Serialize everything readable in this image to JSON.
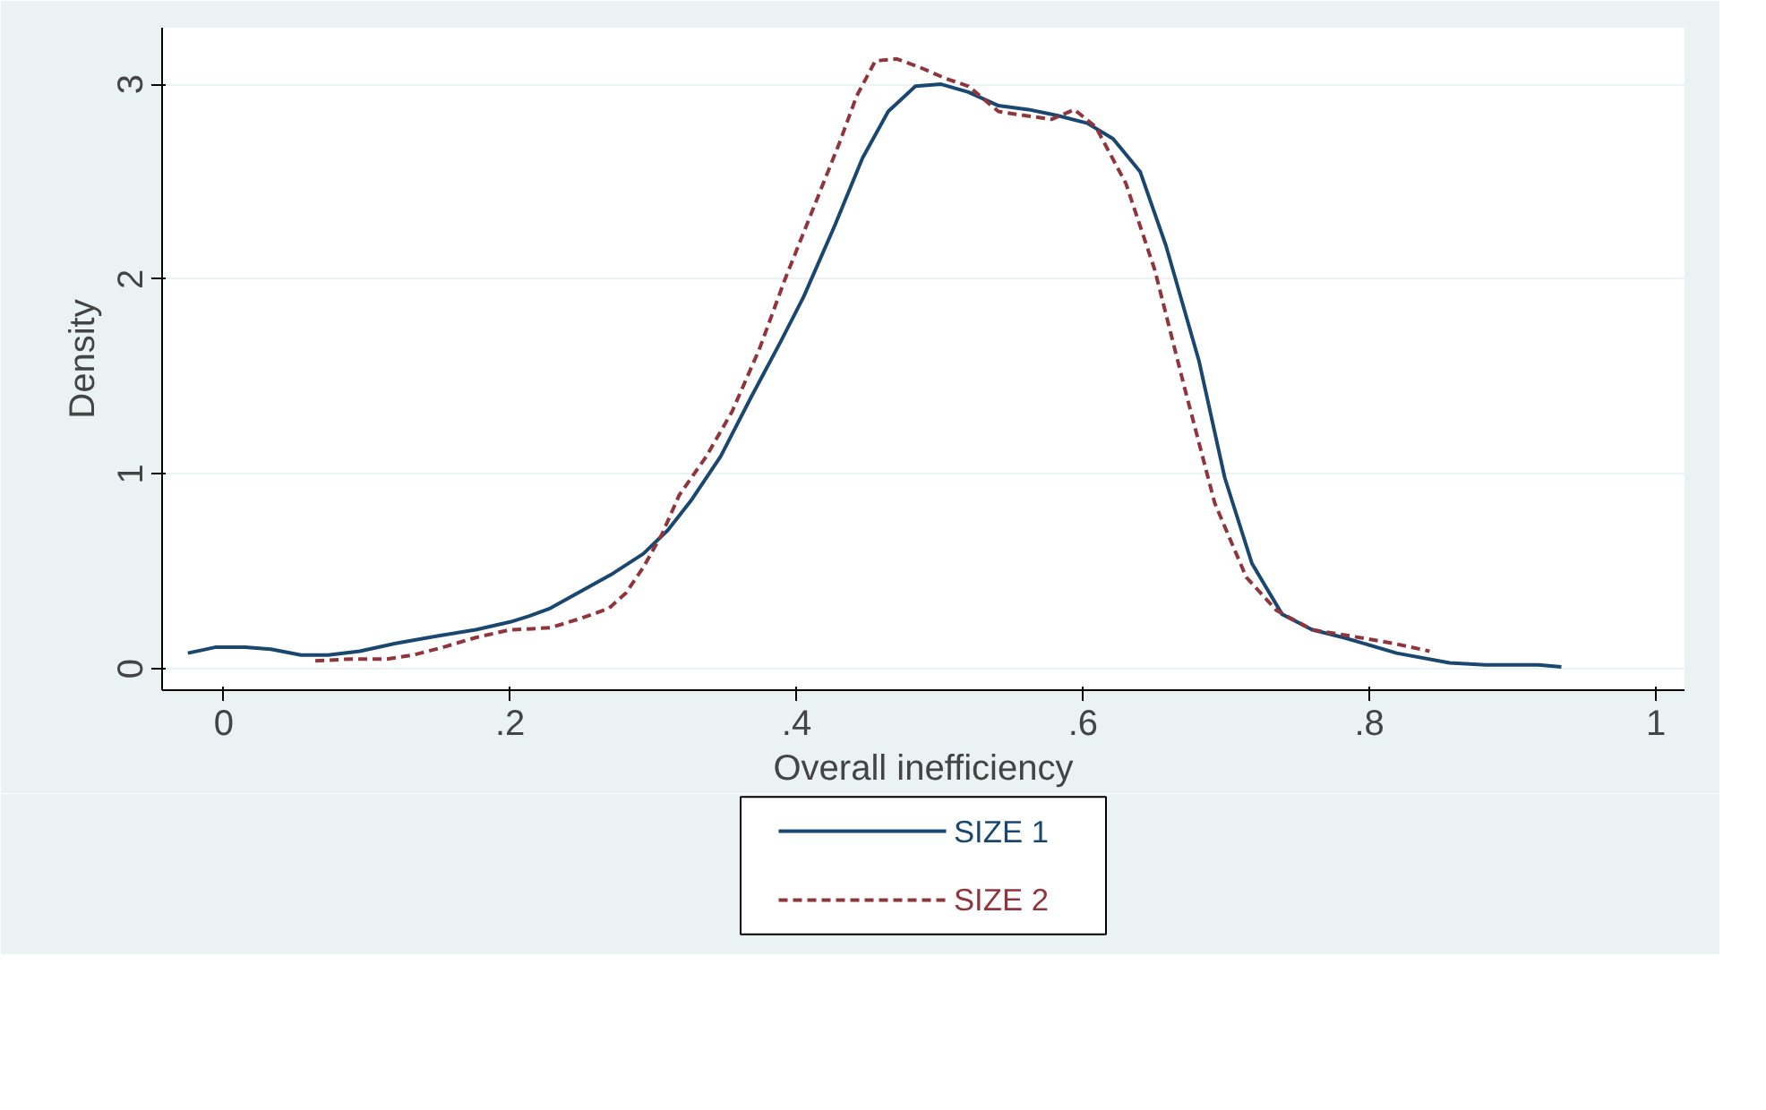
{
  "chart_data": {
    "type": "line",
    "xlabel": "Overall inefficiency",
    "ylabel": "Density",
    "xlim": [
      -0.043,
      1.02
    ],
    "ylim": [
      -0.11,
      3.29
    ],
    "xticks": [
      0,
      {
        "value": 0.2,
        "label": ".2"
      },
      {
        "value": 0.4,
        "label": ".4"
      },
      {
        "value": 0.6,
        "label": ".6"
      },
      {
        "value": 0.8,
        "label": ".8"
      },
      1
    ],
    "yticks": [
      0,
      1,
      2,
      3
    ],
    "grid": "y",
    "legend": "bottom",
    "series": [
      {
        "name": "SIZE 1",
        "color": "#1a476f",
        "line_style": "solid",
        "x": [
          -0.025,
          -0.006,
          0.015,
          0.033,
          0.054,
          0.073,
          0.095,
          0.12,
          0.151,
          0.176,
          0.2,
          0.213,
          0.228,
          0.25,
          0.272,
          0.293,
          0.31,
          0.327,
          0.347,
          0.368,
          0.389,
          0.405,
          0.427,
          0.446,
          0.464,
          0.483,
          0.501,
          0.52,
          0.541,
          0.562,
          0.582,
          0.603,
          0.621,
          0.64,
          0.658,
          0.681,
          0.699,
          0.718,
          0.739,
          0.76,
          0.782,
          0.819,
          0.856,
          0.881,
          0.918,
          0.934
        ],
        "values": [
          0.08,
          0.11,
          0.11,
          0.1,
          0.07,
          0.07,
          0.09,
          0.13,
          0.17,
          0.2,
          0.24,
          0.27,
          0.31,
          0.4,
          0.49,
          0.59,
          0.71,
          0.87,
          1.09,
          1.39,
          1.68,
          1.91,
          2.28,
          2.62,
          2.86,
          2.99,
          3.0,
          2.96,
          2.89,
          2.87,
          2.84,
          2.8,
          2.72,
          2.55,
          2.17,
          1.58,
          0.98,
          0.54,
          0.28,
          0.2,
          0.16,
          0.08,
          0.03,
          0.02,
          0.02,
          0.01
        ]
      },
      {
        "name": "SIZE 2",
        "color": "#90353b",
        "line_style": "dashed",
        "x": [
          0.064,
          0.089,
          0.114,
          0.132,
          0.153,
          0.176,
          0.2,
          0.228,
          0.25,
          0.269,
          0.281,
          0.293,
          0.306,
          0.318,
          0.337,
          0.355,
          0.374,
          0.392,
          0.411,
          0.43,
          0.442,
          0.455,
          0.47,
          0.485,
          0.504,
          0.52,
          0.541,
          0.559,
          0.578,
          0.594,
          0.609,
          0.63,
          0.65,
          0.671,
          0.692,
          0.714,
          0.735,
          0.76,
          0.785,
          0.817,
          0.842
        ],
        "values": [
          0.04,
          0.05,
          0.05,
          0.07,
          0.11,
          0.16,
          0.2,
          0.21,
          0.26,
          0.31,
          0.39,
          0.52,
          0.69,
          0.89,
          1.09,
          1.32,
          1.64,
          2.0,
          2.35,
          2.7,
          2.94,
          3.12,
          3.13,
          3.09,
          3.03,
          2.99,
          2.86,
          2.84,
          2.82,
          2.87,
          2.78,
          2.49,
          2.05,
          1.44,
          0.85,
          0.47,
          0.3,
          0.2,
          0.17,
          0.13,
          0.09
        ]
      }
    ]
  }
}
